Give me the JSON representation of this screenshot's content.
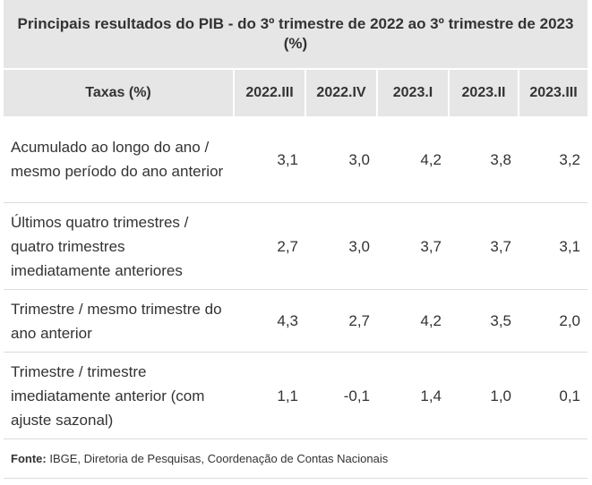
{
  "title": "Principais resultados do PIB - do 3º trimestre de 2022 ao 3º trimestre de 2023 (%)",
  "headers": [
    "Taxas (%)",
    "2022.III",
    "2022.IV",
    "2023.I",
    "2023.II",
    "2023.III"
  ],
  "rows": [
    {
      "label": "Acumulado ao longo do ano / mesmo período do ano anterior",
      "values": [
        "3,1",
        "3,0",
        "4,2",
        "3,8",
        "3,2"
      ]
    },
    {
      "label": "Últimos quatro trimestres / quatro trimestres imediatamente anteriores",
      "values": [
        "2,7",
        "3,0",
        "3,7",
        "3,7",
        "3,1"
      ]
    },
    {
      "label": "Trimestre / mesmo trimestre do ano anterior",
      "values": [
        "4,3",
        "2,7",
        "4,2",
        "3,5",
        "2,0"
      ]
    },
    {
      "label": "Trimestre / trimestre imediatamente anterior (com ajuste sazonal)",
      "values": [
        "1,1",
        "-0,1",
        "1,4",
        "1,0",
        "0,1"
      ]
    }
  ],
  "source": {
    "prefix": "Fonte:",
    "text": " IBGE, Diretoria de Pesquisas, Coordenação de Contas Nacionais"
  }
}
